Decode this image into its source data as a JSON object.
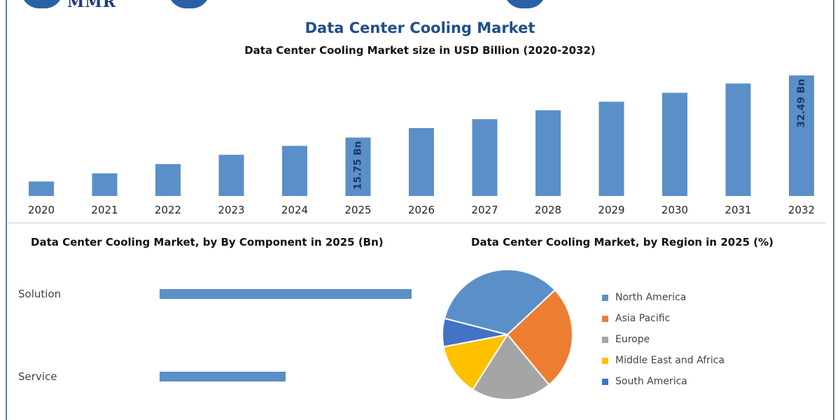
{
  "header": {
    "logo_text": "MMR",
    "title": "Data Center Cooling Market",
    "subtitle": "Data Center Cooling Market size in USD Billion (2020-2032)"
  },
  "colors": {
    "bar": "#5b8fc7",
    "north_america": "#5b8fc7",
    "asia_pacific": "#ed7d31",
    "europe": "#a5a5a5",
    "middle_east_africa": "#ffc000",
    "south_america": "#4472c4"
  },
  "chart_data": [
    {
      "type": "bar",
      "title": "Data Center Cooling Market size in USD Billion (2020-2032)",
      "categories": [
        "2020",
        "2021",
        "2022",
        "2023",
        "2024",
        "2025",
        "2026",
        "2027",
        "2028",
        "2029",
        "2030",
        "2031",
        "2032"
      ],
      "values": [
        3.9,
        6.1,
        8.6,
        11.1,
        13.5,
        15.75,
        18.3,
        20.7,
        23.1,
        25.4,
        27.8,
        30.3,
        32.49
      ],
      "data_labels": {
        "5": "15.75 Bn",
        "12": "32.49 Bn"
      },
      "ylim": [
        0,
        33
      ],
      "grid": false,
      "legend": "none"
    },
    {
      "type": "bar",
      "orientation": "horizontal",
      "title": "Data Center Cooling Market, by By Component in 2025 (Bn)",
      "categories": [
        "Solution",
        "Service"
      ],
      "values": [
        10.6,
        5.3
      ],
      "xlim": [
        0,
        10.6
      ],
      "grid": false,
      "legend": "none"
    },
    {
      "type": "pie",
      "title": "Data Center Cooling Market, by Region in 2025 (%)",
      "categories": [
        "North America",
        "Asia Pacific",
        "Europe",
        "Middle East and Africa",
        "South America"
      ],
      "values": [
        34,
        26,
        20,
        13,
        7
      ],
      "legend": "right"
    }
  ]
}
